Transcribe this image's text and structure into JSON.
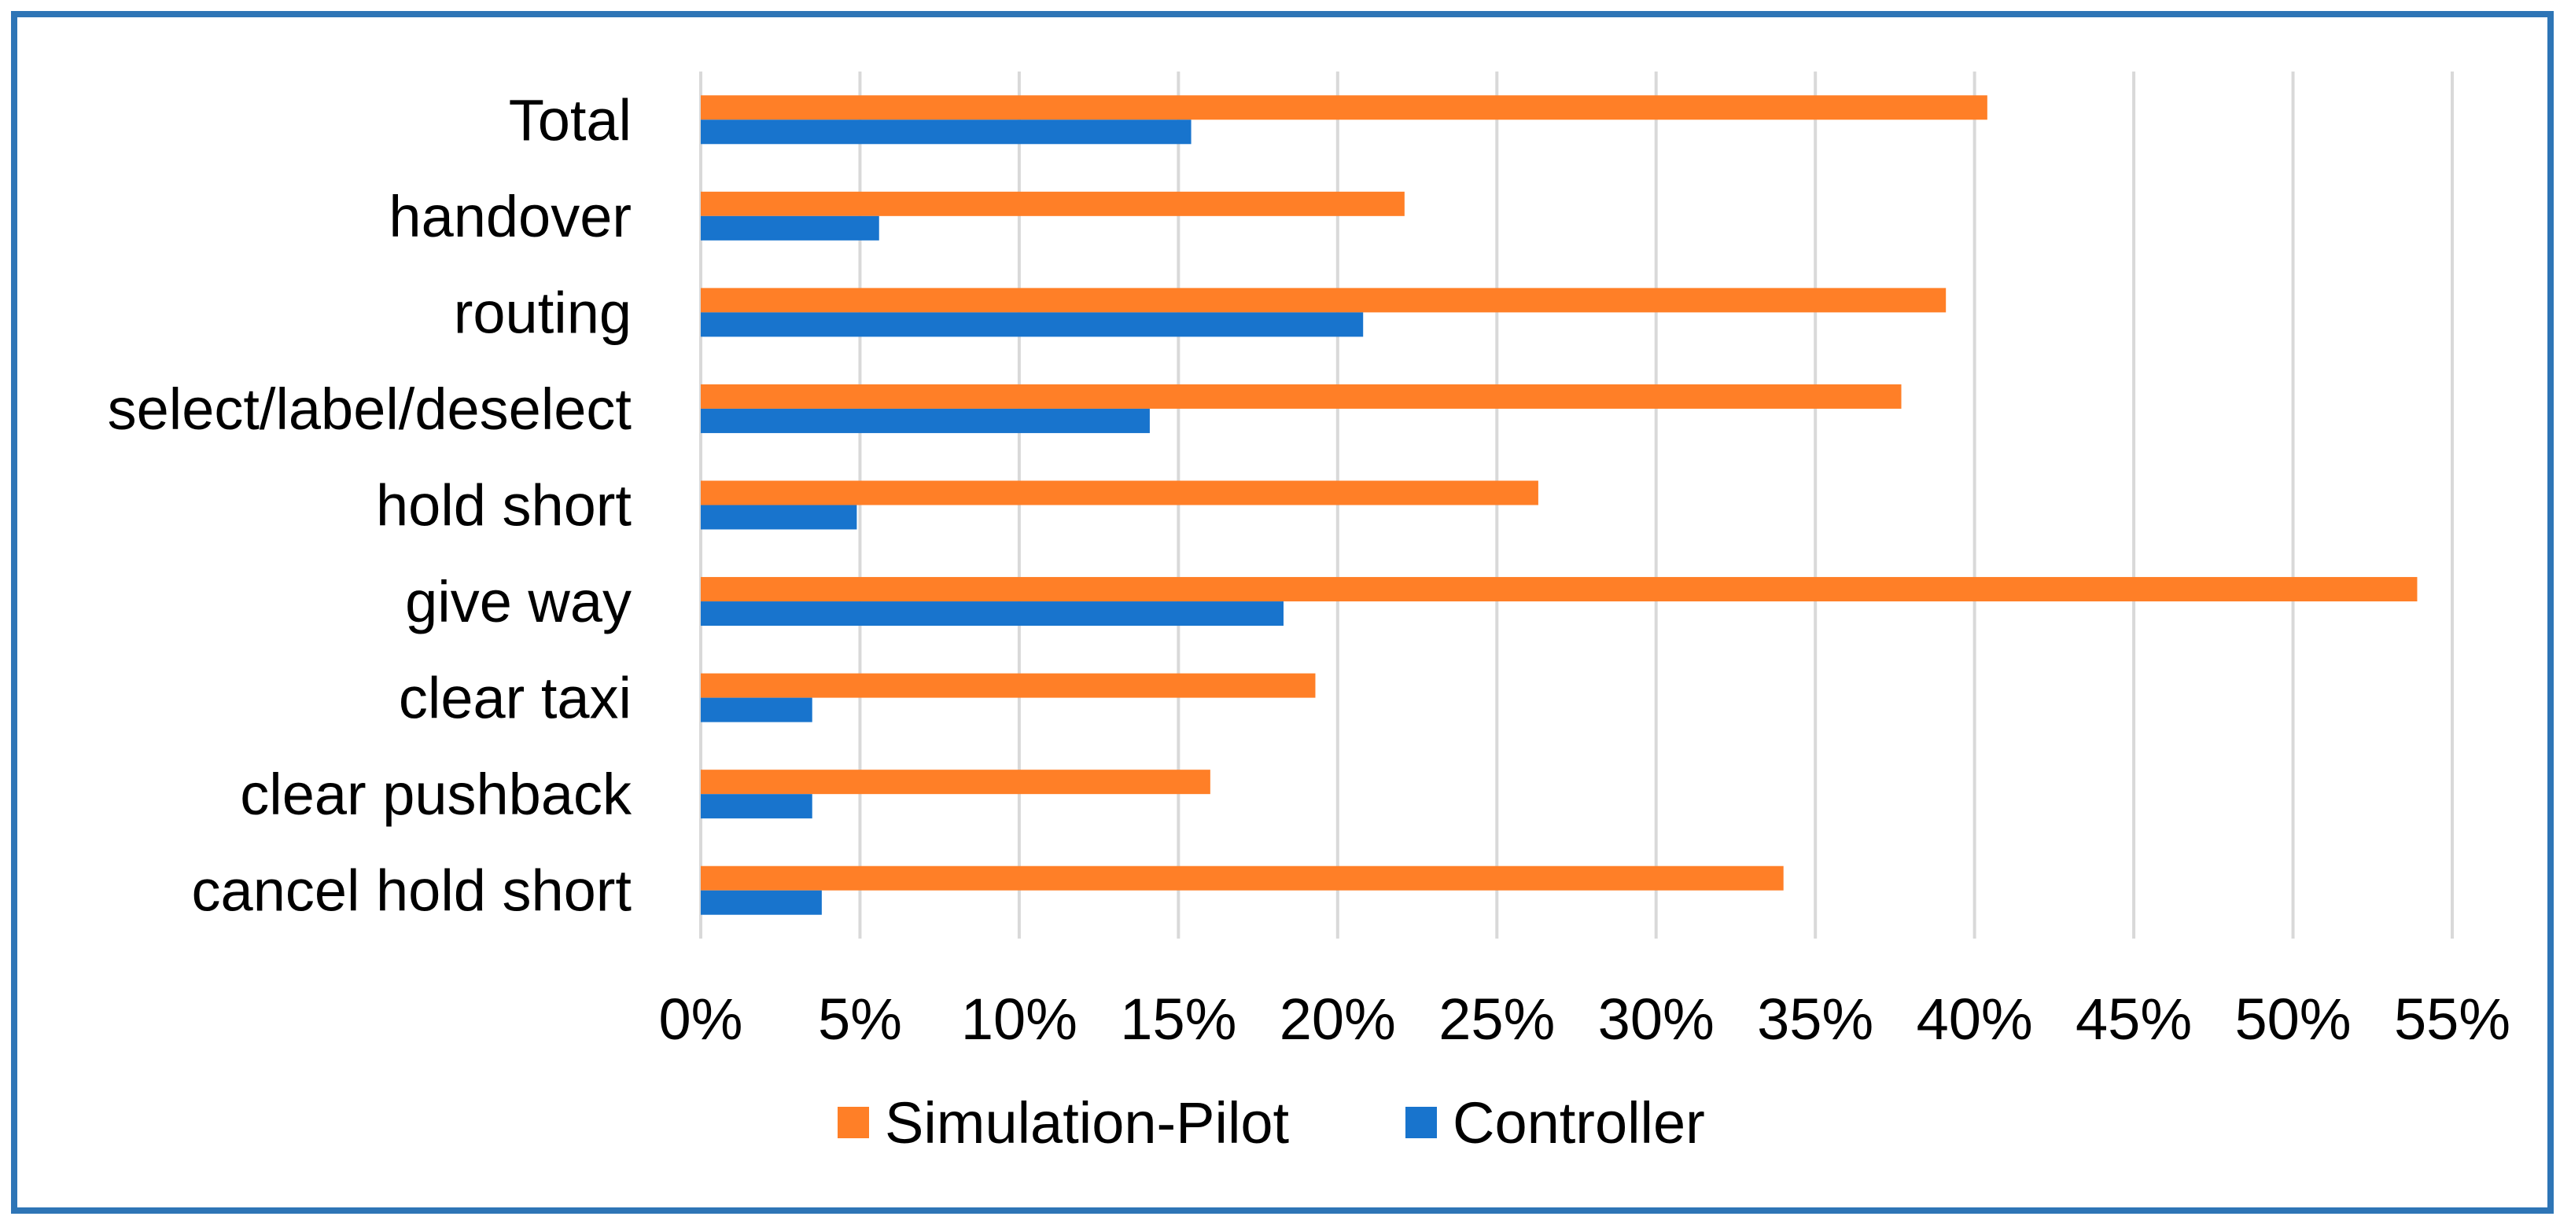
{
  "chart_data": {
    "type": "bar",
    "orientation": "horizontal",
    "categories": [
      "Total",
      "handover",
      "routing",
      "select/label/deselect",
      "hold short",
      "give way",
      "clear taxi",
      "clear pushback",
      "cancel hold short"
    ],
    "series": [
      {
        "name": "Simulation-Pilot",
        "color": "#FF7F27",
        "values": [
          40.4,
          22.1,
          39.1,
          37.7,
          26.3,
          53.9,
          19.3,
          16.0,
          34.0
        ]
      },
      {
        "name": "Controller",
        "color": "#1874CD",
        "values": [
          15.4,
          5.6,
          20.8,
          14.1,
          4.9,
          18.3,
          3.5,
          3.5,
          3.8
        ]
      }
    ],
    "xlim": [
      0,
      55
    ],
    "xticks": [
      0,
      5,
      10,
      15,
      20,
      25,
      30,
      35,
      40,
      45,
      50,
      55
    ],
    "xtick_labels": [
      "0%",
      "5%",
      "10%",
      "15%",
      "20%",
      "25%",
      "30%",
      "35%",
      "40%",
      "45%",
      "50%",
      "55%"
    ],
    "title": "",
    "xlabel": "",
    "ylabel": "",
    "grid": "vertical",
    "legend_position": "bottom"
  },
  "frame_color": "#2E75B6"
}
